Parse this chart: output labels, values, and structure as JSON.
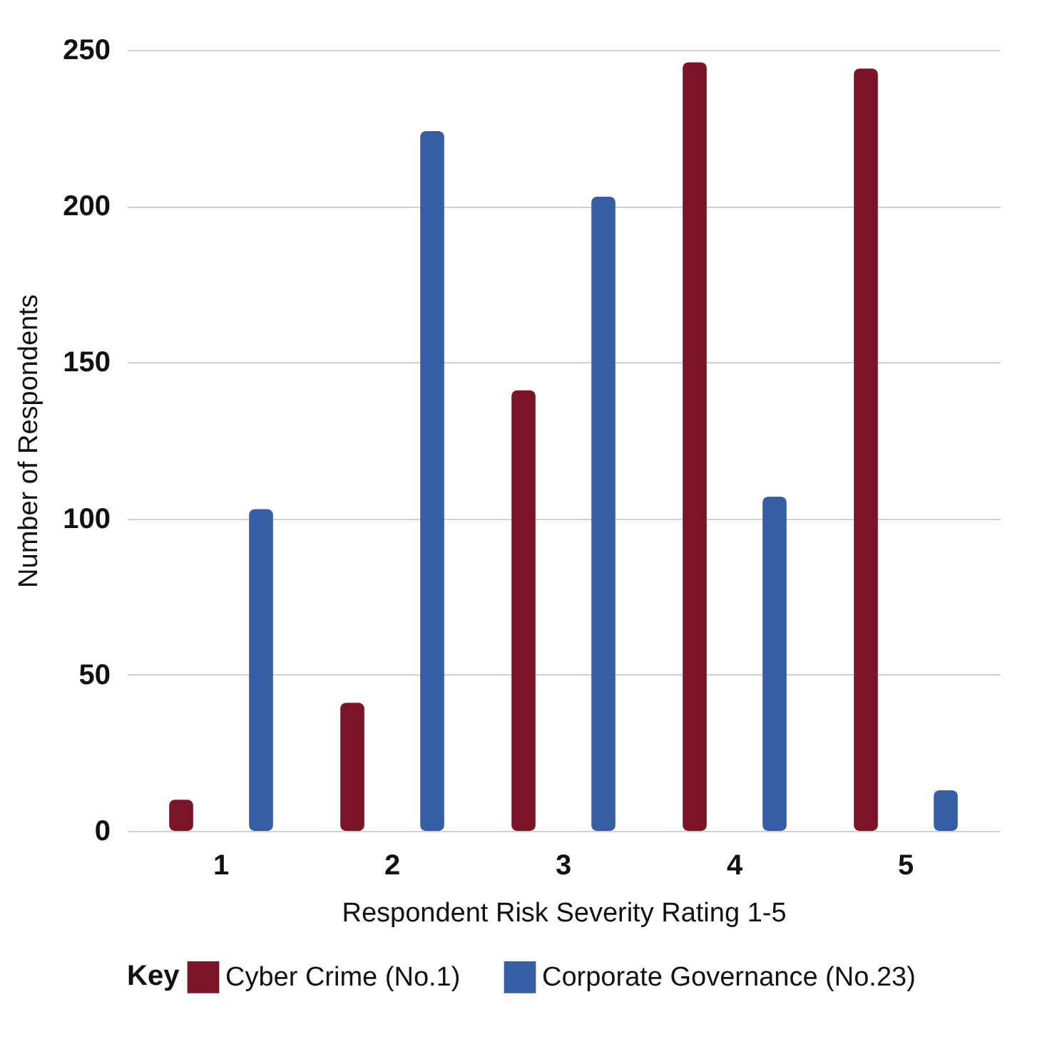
{
  "chart_data": {
    "type": "bar",
    "xlabel": "Respondent Risk Severity Rating 1-5",
    "ylabel": "Number of Respondents",
    "legend_title": "Key",
    "categories": [
      "1",
      "2",
      "3",
      "4",
      "5"
    ],
    "series": [
      {
        "name": "Cyber Crime (No.1)",
        "color": "#7b1426",
        "values": [
          10,
          41,
          141,
          246,
          244
        ]
      },
      {
        "name": "Corporate Governance (No.23)",
        "color": "#365ea5",
        "values": [
          103,
          224,
          203,
          107,
          13
        ]
      }
    ],
    "ylim": [
      0,
      250
    ],
    "yticks": [
      0,
      50,
      100,
      150,
      200,
      250
    ],
    "grid": "y",
    "legend": "bottom"
  }
}
